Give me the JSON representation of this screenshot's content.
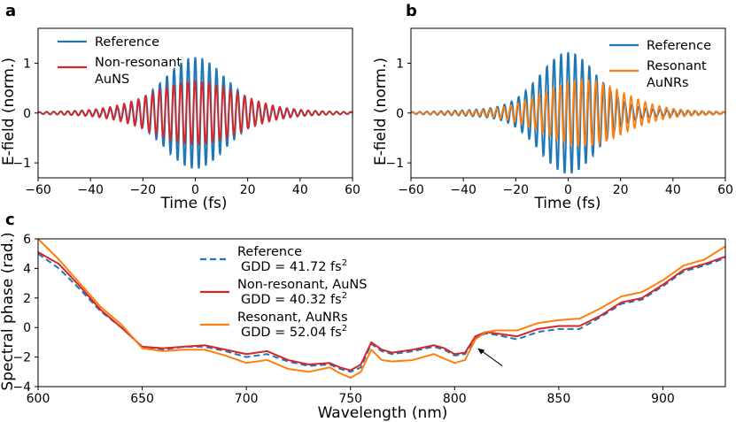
{
  "chart_data": [
    {
      "panel": "a",
      "type": "line",
      "title": "",
      "xlabel": "Time (fs)",
      "ylabel": "E-field (norm.)",
      "xlim": [
        -60,
        60
      ],
      "ylim": [
        -1.3,
        1.7
      ],
      "xticks": [
        "−60",
        "−40",
        "−20",
        "0",
        "20",
        "40",
        "60"
      ],
      "yticks": [
        "−1",
        "0",
        "1"
      ],
      "legend_position": "upper-left",
      "series": [
        {
          "name": "Reference",
          "color": "#1f77b4",
          "model": {
            "amp": 1.0,
            "width": 16,
            "period": 2.7,
            "phase": 0.0
          }
        },
        {
          "name": "Non-resonant AuNS",
          "color": "#d62728",
          "model": {
            "amp": 0.52,
            "width": 22,
            "period": 2.7,
            "phase": 0.3
          }
        }
      ],
      "legend": [
        "Reference",
        "Non-resonant",
        "AuNS"
      ]
    },
    {
      "panel": "b",
      "type": "line",
      "title": "",
      "xlabel": "Time (fs)",
      "ylabel": "E-field (norm.)",
      "xlim": [
        -60,
        60
      ],
      "ylim": [
        -1.3,
        1.7
      ],
      "xticks": [
        "−60",
        "−40",
        "−20",
        "0",
        "20",
        "40",
        "60"
      ],
      "yticks": [
        "−1",
        "0",
        "1"
      ],
      "legend_position": "upper-right",
      "series": [
        {
          "name": "Reference",
          "color": "#1f77b4",
          "model": {
            "amp": 1.1,
            "width": 15,
            "period": 2.7,
            "phase": 0.0
          }
        },
        {
          "name": "Resonant AuNRs",
          "color": "#ff7f0e",
          "model": {
            "amp": 0.55,
            "width": 20,
            "period": 2.7,
            "phase": 0.6,
            "center": 6
          }
        }
      ],
      "legend": [
        "Reference",
        "Resonant",
        "AuNRs"
      ]
    },
    {
      "panel": "c",
      "type": "line",
      "title": "",
      "xlabel": "Wavelength (nm)",
      "ylabel": "Spectral phase (rad.)",
      "xlim": [
        600,
        930
      ],
      "ylim": [
        -4,
        6
      ],
      "xticks": [
        "600",
        "650",
        "700",
        "750",
        "800",
        "850",
        "900"
      ],
      "yticks": [
        "−4",
        "−2",
        "0",
        "2",
        "4",
        "6"
      ],
      "legend_position": "upper-center",
      "x": [
        600,
        610,
        620,
        630,
        640,
        650,
        660,
        670,
        680,
        690,
        700,
        710,
        720,
        730,
        740,
        745,
        750,
        755,
        760,
        765,
        770,
        780,
        790,
        795,
        800,
        805,
        810,
        815,
        820,
        830,
        840,
        850,
        860,
        870,
        880,
        890,
        900,
        910,
        920,
        930
      ],
      "series": [
        {
          "name": "Reference",
          "gdd": "41.72",
          "color": "#1f77b4",
          "dash": true,
          "values": [
            5.0,
            4.0,
            2.6,
            1.1,
            0.0,
            -1.3,
            -1.5,
            -1.3,
            -1.3,
            -1.6,
            -2.0,
            -1.8,
            -2.3,
            -2.6,
            -2.5,
            -2.8,
            -3.0,
            -2.7,
            -1.1,
            -1.6,
            -1.8,
            -1.6,
            -1.3,
            -1.5,
            -1.9,
            -1.8,
            -0.7,
            -0.4,
            -0.5,
            -0.8,
            -0.3,
            -0.1,
            -0.1,
            0.7,
            1.6,
            1.9,
            2.8,
            3.8,
            4.2,
            4.7
          ]
        },
        {
          "name": "Non-resonant, AuNS",
          "gdd": "40.32",
          "color": "#d62728",
          "dash": false,
          "values": [
            5.1,
            4.3,
            2.8,
            1.2,
            0.0,
            -1.3,
            -1.4,
            -1.3,
            -1.2,
            -1.5,
            -1.8,
            -1.6,
            -2.2,
            -2.5,
            -2.4,
            -2.7,
            -2.9,
            -2.5,
            -1.0,
            -1.5,
            -1.7,
            -1.5,
            -1.2,
            -1.4,
            -1.8,
            -1.7,
            -0.6,
            -0.3,
            -0.4,
            -0.6,
            -0.1,
            0.1,
            0.1,
            0.8,
            1.7,
            2.0,
            2.9,
            3.9,
            4.3,
            4.8
          ]
        },
        {
          "name": "Resonant, AuNRs",
          "gdd": "52.04",
          "color": "#ff7f0e",
          "dash": false,
          "values": [
            6.2,
            4.6,
            3.0,
            1.4,
            0.2,
            -1.4,
            -1.6,
            -1.5,
            -1.5,
            -1.9,
            -2.4,
            -2.2,
            -2.8,
            -3.0,
            -2.7,
            -3.1,
            -3.4,
            -3.0,
            -1.5,
            -2.2,
            -2.3,
            -2.2,
            -1.8,
            -2.1,
            -2.4,
            -2.2,
            -0.8,
            -0.3,
            -0.2,
            -0.2,
            0.3,
            0.5,
            0.6,
            1.3,
            2.1,
            2.4,
            3.2,
            4.2,
            4.6,
            5.5
          ]
        }
      ],
      "legend": [
        {
          "line1": "Reference",
          "line2_prefix": "GDD = 41.72 fs",
          "sup": "2"
        },
        {
          "line1": "Non-resonant, AuNS",
          "line2_prefix": "GDD = 40.32 fs",
          "sup": "2"
        },
        {
          "line1": "Resonant, AuNRs",
          "line2_prefix": "GDD = 52.04 fs",
          "sup": "2"
        }
      ],
      "annotation": {
        "type": "arrow",
        "points_to_x": 811,
        "points_to_y": -1.4
      }
    }
  ]
}
